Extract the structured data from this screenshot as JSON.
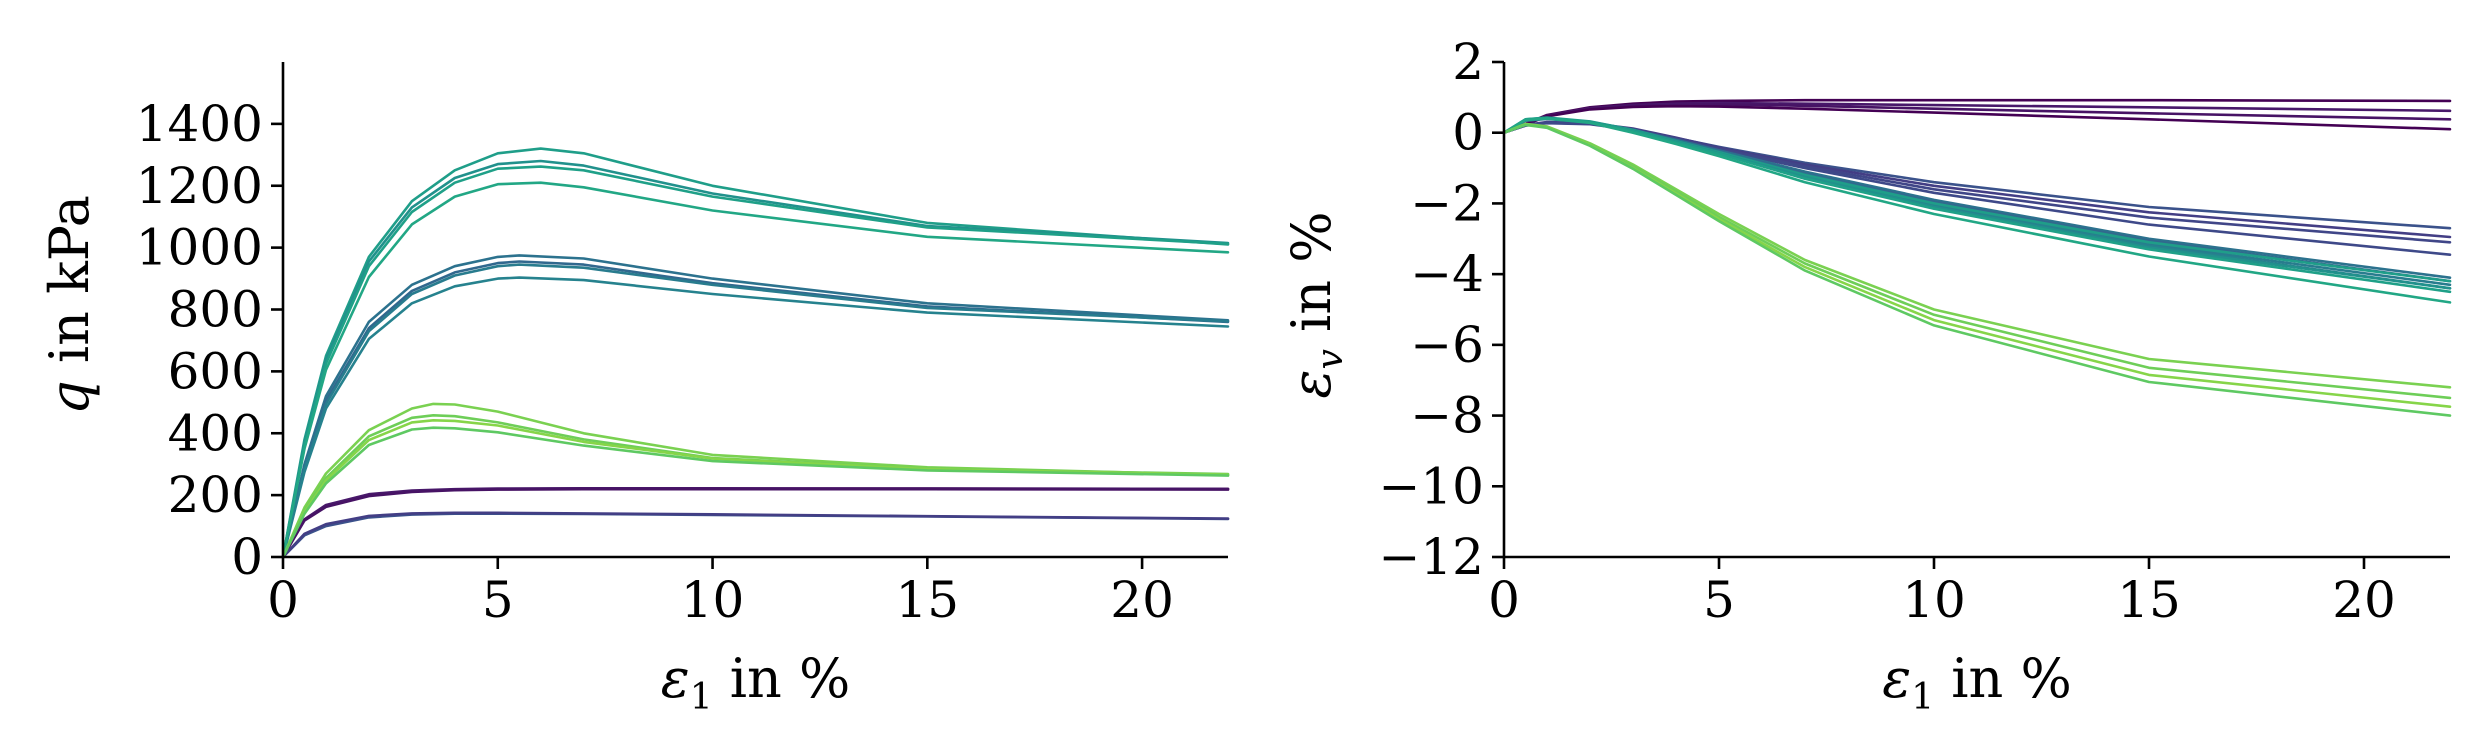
{
  "chart_data": [
    {
      "type": "line",
      "ylabel_symbol": "q",
      "ylabel_text": " in kPa",
      "xlabel_symbol": "ε",
      "xlabel_sub": "1",
      "xlabel_text": " in %",
      "xlim": [
        0,
        22
      ],
      "ylim": [
        0,
        1600
      ],
      "xticks": [
        0,
        5,
        10,
        15,
        20
      ],
      "yticks": [
        0,
        200,
        400,
        600,
        800,
        1000,
        1200,
        1400
      ],
      "grid": false,
      "series": [
        {
          "color": "#440154",
          "x": [
            0,
            0.5,
            1,
            2,
            3,
            4,
            5,
            7,
            10,
            15,
            22
          ],
          "y": [
            0,
            120,
            165,
            200,
            213,
            218,
            220,
            221,
            221,
            221,
            220
          ]
        },
        {
          "color": "#48186a",
          "x": [
            0,
            0.5,
            1,
            2,
            3,
            4,
            5,
            7,
            10,
            15,
            22
          ],
          "y": [
            0,
            122,
            168,
            203,
            215,
            219,
            221,
            222,
            222,
            221,
            220
          ]
        },
        {
          "color": "#471365",
          "x": [
            0,
            0.5,
            1,
            2,
            3,
            4,
            5,
            7,
            10,
            15,
            22
          ],
          "y": [
            0,
            118,
            162,
            197,
            210,
            216,
            218,
            219,
            219,
            219,
            218
          ]
        },
        {
          "color": "#3b528b",
          "x": [
            0,
            0.5,
            1,
            2,
            3,
            4,
            5,
            7,
            10,
            15,
            22
          ],
          "y": [
            0,
            70,
            100,
            128,
            137,
            140,
            140,
            139,
            136,
            131,
            123
          ]
        },
        {
          "color": "#433e85",
          "x": [
            0,
            0.5,
            1,
            2,
            3,
            4,
            5,
            7,
            10,
            15,
            22
          ],
          "y": [
            0,
            75,
            106,
            133,
            141,
            143,
            143,
            141,
            138,
            132,
            124
          ]
        },
        {
          "color": "#2c728e",
          "x": [
            0,
            0.5,
            1,
            2,
            3,
            4,
            5,
            5.5,
            7,
            10,
            15,
            22
          ],
          "y": [
            0,
            300,
            520,
            760,
            880,
            940,
            970,
            975,
            965,
            900,
            820,
            765
          ]
        },
        {
          "color": "#31688e",
          "x": [
            0,
            0.5,
            1,
            2,
            3,
            4,
            5,
            5.5,
            7,
            10,
            15,
            22
          ],
          "y": [
            0,
            290,
            505,
            740,
            860,
            920,
            950,
            955,
            945,
            885,
            810,
            760
          ]
        },
        {
          "color": "#287c8e",
          "x": [
            0,
            0.5,
            1,
            2,
            3,
            4,
            5,
            5.5,
            7,
            10,
            15,
            22
          ],
          "y": [
            0,
            285,
            495,
            730,
            850,
            910,
            940,
            945,
            935,
            880,
            805,
            762
          ]
        },
        {
          "color": "#26828e",
          "x": [
            0,
            0.5,
            1,
            2,
            3,
            4,
            5,
            5.5,
            7,
            10,
            15,
            22
          ],
          "y": [
            0,
            275,
            480,
            705,
            820,
            875,
            900,
            903,
            895,
            850,
            790,
            745
          ]
        },
        {
          "color": "#1f9e89",
          "x": [
            0,
            0.5,
            1,
            2,
            3,
            4,
            5,
            6,
            7,
            10,
            15,
            22
          ],
          "y": [
            0,
            380,
            650,
            970,
            1150,
            1250,
            1305,
            1320,
            1305,
            1200,
            1080,
            1010
          ]
        },
        {
          "color": "#21918c",
          "x": [
            0,
            0.5,
            1,
            2,
            3,
            4,
            5,
            6,
            7,
            10,
            15,
            22
          ],
          "y": [
            0,
            370,
            640,
            955,
            1130,
            1225,
            1270,
            1280,
            1265,
            1175,
            1070,
            1015
          ]
        },
        {
          "color": "#1fa088",
          "x": [
            0,
            0.5,
            1,
            2,
            3,
            4,
            5,
            6,
            7,
            10,
            15,
            22
          ],
          "y": [
            0,
            360,
            625,
            940,
            1115,
            1210,
            1255,
            1262,
            1250,
            1165,
            1065,
            1012
          ]
        },
        {
          "color": "#22a785",
          "x": [
            0,
            0.5,
            1,
            2,
            3,
            4,
            5,
            6,
            7,
            10,
            15,
            22
          ],
          "y": [
            0,
            350,
            605,
            905,
            1075,
            1165,
            1205,
            1210,
            1195,
            1120,
            1035,
            985
          ]
        },
        {
          "color": "#7ad151",
          "x": [
            0,
            0.5,
            1,
            2,
            3,
            3.5,
            4,
            5,
            7,
            10,
            15,
            22
          ],
          "y": [
            0,
            160,
            270,
            410,
            480,
            495,
            493,
            470,
            400,
            330,
            290,
            265
          ]
        },
        {
          "color": "#6ece58",
          "x": [
            0,
            0.5,
            1,
            2,
            3,
            3.5,
            4,
            5,
            7,
            10,
            15,
            22
          ],
          "y": [
            0,
            150,
            255,
            390,
            450,
            458,
            455,
            435,
            380,
            320,
            285,
            268
          ]
        },
        {
          "color": "#86d549",
          "x": [
            0,
            0.5,
            1,
            2,
            3,
            3.5,
            4,
            5,
            7,
            10,
            15,
            22
          ],
          "y": [
            0,
            145,
            248,
            378,
            435,
            442,
            440,
            425,
            372,
            318,
            284,
            266
          ]
        },
        {
          "color": "#5ec962",
          "x": [
            0,
            0.5,
            1,
            2,
            3,
            3.5,
            4,
            5,
            7,
            10,
            15,
            22
          ],
          "y": [
            0,
            140,
            238,
            362,
            412,
            418,
            416,
            403,
            360,
            310,
            280,
            263
          ]
        }
      ]
    },
    {
      "type": "line",
      "ylabel_symbol": "ε",
      "ylabel_sub": "v",
      "ylabel_text": " in %",
      "xlabel_symbol": "ε",
      "xlabel_sub": "1",
      "xlabel_text": " in %",
      "xlim": [
        0,
        22
      ],
      "ylim": [
        -12,
        2
      ],
      "xticks": [
        0,
        5,
        10,
        15,
        20
      ],
      "yticks": [
        -12,
        -10,
        -8,
        -6,
        -4,
        -2,
        0,
        2
      ],
      "grid": false,
      "series": [
        {
          "color": "#440154",
          "x": [
            0,
            1,
            2,
            3,
            4,
            5,
            7,
            10,
            15,
            22
          ],
          "y": [
            0,
            0.5,
            0.72,
            0.82,
            0.88,
            0.9,
            0.92,
            0.92,
            0.92,
            0.9
          ]
        },
        {
          "color": "#48186a",
          "x": [
            0,
            1,
            2,
            3,
            4,
            5,
            7,
            10,
            15,
            22
          ],
          "y": [
            0,
            0.48,
            0.7,
            0.78,
            0.82,
            0.84,
            0.82,
            0.78,
            0.72,
            0.62
          ]
        },
        {
          "color": "#471365",
          "x": [
            0,
            1,
            2,
            3,
            4,
            5,
            7,
            10,
            15,
            22
          ],
          "y": [
            0,
            0.47,
            0.68,
            0.76,
            0.79,
            0.8,
            0.76,
            0.68,
            0.55,
            0.38
          ]
        },
        {
          "color": "#440154",
          "x": [
            0,
            1,
            2,
            3,
            4,
            5,
            7,
            10,
            15,
            22
          ],
          "y": [
            0,
            0.46,
            0.66,
            0.73,
            0.75,
            0.74,
            0.68,
            0.57,
            0.38,
            0.1
          ]
        },
        {
          "color": "#3b528b",
          "x": [
            0,
            0.5,
            1,
            2,
            3,
            4,
            5,
            7,
            10,
            15,
            22
          ],
          "y": [
            0,
            0.2,
            0.28,
            0.25,
            0.1,
            -0.15,
            -0.4,
            -0.85,
            -1.4,
            -2.1,
            -2.7
          ]
        },
        {
          "color": "#433e85",
          "x": [
            0,
            0.5,
            1,
            2,
            3,
            4,
            5,
            7,
            10,
            15,
            22
          ],
          "y": [
            0,
            0.22,
            0.3,
            0.27,
            0.12,
            -0.14,
            -0.42,
            -0.9,
            -1.5,
            -2.25,
            -2.95
          ]
        },
        {
          "color": "#404688",
          "x": [
            0,
            0.5,
            1,
            2,
            3,
            4,
            5,
            7,
            10,
            15,
            22
          ],
          "y": [
            0,
            0.21,
            0.29,
            0.26,
            0.1,
            -0.16,
            -0.45,
            -0.95,
            -1.6,
            -2.4,
            -3.1
          ]
        },
        {
          "color": "#3e4989",
          "x": [
            0,
            0.5,
            1,
            2,
            3,
            4,
            5,
            7,
            10,
            15,
            22
          ],
          "y": [
            0,
            0.2,
            0.27,
            0.24,
            0.08,
            -0.18,
            -0.48,
            -1.0,
            -1.7,
            -2.6,
            -3.45
          ]
        },
        {
          "color": "#2c728e",
          "x": [
            0,
            0.5,
            1,
            2,
            3,
            4,
            5,
            7,
            10,
            15,
            22
          ],
          "y": [
            0,
            0.35,
            0.4,
            0.3,
            0.08,
            -0.2,
            -0.5,
            -1.1,
            -1.9,
            -3.0,
            -4.1
          ]
        },
        {
          "color": "#31688e",
          "x": [
            0,
            0.5,
            1,
            2,
            3,
            4,
            5,
            7,
            10,
            15,
            22
          ],
          "y": [
            0,
            0.34,
            0.39,
            0.29,
            0.07,
            -0.22,
            -0.52,
            -1.15,
            -1.95,
            -3.05,
            -4.2
          ]
        },
        {
          "color": "#287c8e",
          "x": [
            0,
            0.5,
            1,
            2,
            3,
            4,
            5,
            7,
            10,
            15,
            22
          ],
          "y": [
            0,
            0.36,
            0.41,
            0.31,
            0.08,
            -0.22,
            -0.53,
            -1.18,
            -2.0,
            -3.15,
            -4.3
          ]
        },
        {
          "color": "#26828e",
          "x": [
            0,
            0.5,
            1,
            2,
            3,
            4,
            5,
            7,
            10,
            15,
            22
          ],
          "y": [
            0,
            0.35,
            0.4,
            0.29,
            0.05,
            -0.25,
            -0.56,
            -1.22,
            -2.05,
            -3.2,
            -4.4
          ]
        },
        {
          "color": "#1f9e89",
          "x": [
            0,
            0.5,
            1,
            2,
            3,
            4,
            5,
            7,
            10,
            15,
            22
          ],
          "y": [
            0,
            0.38,
            0.43,
            0.32,
            0.08,
            -0.24,
            -0.55,
            -1.2,
            -2.0,
            -3.1,
            -4.2
          ]
        },
        {
          "color": "#21918c",
          "x": [
            0,
            0.5,
            1,
            2,
            3,
            4,
            5,
            7,
            10,
            15,
            22
          ],
          "y": [
            0,
            0.37,
            0.42,
            0.31,
            0.06,
            -0.26,
            -0.58,
            -1.25,
            -2.1,
            -3.25,
            -4.4
          ]
        },
        {
          "color": "#1fa088",
          "x": [
            0,
            0.5,
            1,
            2,
            3,
            4,
            5,
            7,
            10,
            15,
            22
          ],
          "y": [
            0,
            0.38,
            0.42,
            0.3,
            0.04,
            -0.28,
            -0.6,
            -1.3,
            -2.15,
            -3.3,
            -4.5
          ]
        },
        {
          "color": "#22a785",
          "x": [
            0,
            0.5,
            1,
            2,
            3,
            4,
            5,
            7,
            10,
            15,
            22
          ],
          "y": [
            0,
            0.36,
            0.4,
            0.28,
            0.0,
            -0.32,
            -0.66,
            -1.4,
            -2.3,
            -3.5,
            -4.8
          ]
        },
        {
          "color": "#7ad151",
          "x": [
            0,
            0.5,
            1,
            2,
            3,
            4,
            5,
            7,
            10,
            15,
            22
          ],
          "y": [
            0,
            0.25,
            0.18,
            -0.3,
            -0.9,
            -1.6,
            -2.3,
            -3.6,
            -5.0,
            -6.4,
            -7.2
          ]
        },
        {
          "color": "#6ece58",
          "x": [
            0,
            0.5,
            1,
            2,
            3,
            4,
            5,
            7,
            10,
            15,
            22
          ],
          "y": [
            0,
            0.24,
            0.16,
            -0.33,
            -0.95,
            -1.65,
            -2.38,
            -3.7,
            -5.15,
            -6.65,
            -7.5
          ]
        },
        {
          "color": "#86d549",
          "x": [
            0,
            0.5,
            1,
            2,
            3,
            4,
            5,
            7,
            10,
            15,
            22
          ],
          "y": [
            0,
            0.23,
            0.15,
            -0.35,
            -1.0,
            -1.72,
            -2.45,
            -3.8,
            -5.3,
            -6.85,
            -7.75
          ]
        },
        {
          "color": "#5ec962",
          "x": [
            0,
            0.5,
            1,
            2,
            3,
            4,
            5,
            7,
            10,
            15,
            22
          ],
          "y": [
            0,
            0.22,
            0.14,
            -0.37,
            -1.02,
            -1.76,
            -2.5,
            -3.9,
            -5.45,
            -7.05,
            -8.0
          ]
        }
      ]
    }
  ]
}
